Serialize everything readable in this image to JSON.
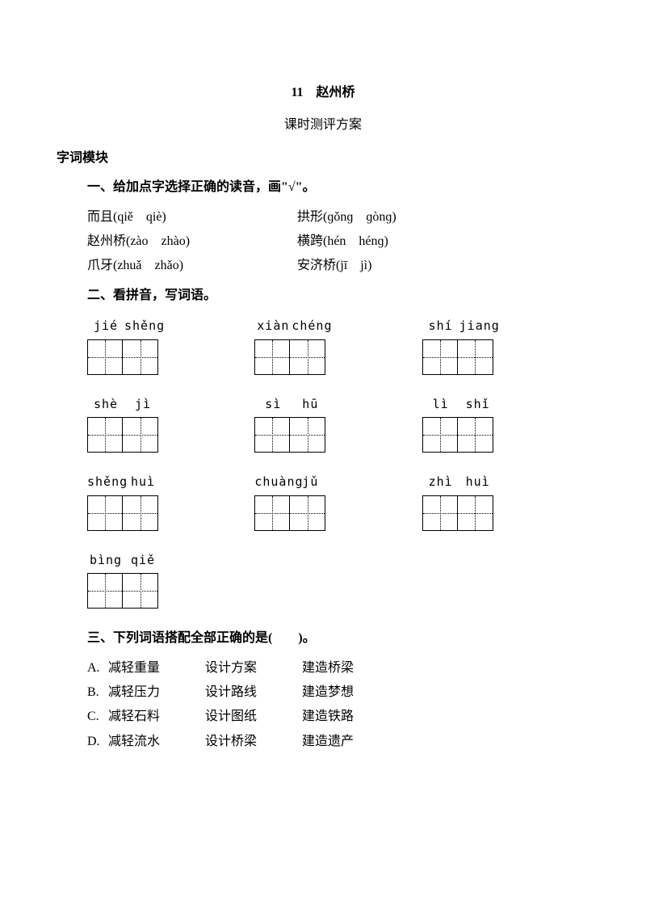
{
  "title": "11　赵州桥",
  "subtitle": "课时测评方案",
  "section_header": "字词模块",
  "q1": {
    "heading": "一、给加点字选择正确的读音，画\"√\"。",
    "rows": [
      {
        "left": "而且(qiě　qiè)",
        "right": "拱形(ɡǒnɡ　ɡònɡ)"
      },
      {
        "left": "赵州桥(zào　zhào)",
        "right": "横跨(hén　hénɡ)"
      },
      {
        "left": "爪牙(zhuǎ　zhǎo)",
        "right": "安济桥(jī　jì)"
      }
    ]
  },
  "q2": {
    "heading": "二、看拼音，写词语。",
    "rows": [
      [
        {
          "p1": "jié",
          "p2": "shěng"
        },
        {
          "p1": "xiàn",
          "p2": "chéng"
        },
        {
          "p1": "shí",
          "p2": "jiang"
        }
      ],
      [
        {
          "p1": "shè",
          "p2": "jì"
        },
        {
          "p1": "sì",
          "p2": "hū"
        },
        {
          "p1": "lì",
          "p2": "shǐ"
        }
      ],
      [
        {
          "p1": "shěng",
          "p2": "huì"
        },
        {
          "p1": "chuàng",
          "p2": "jǔ"
        },
        {
          "p1": "zhì",
          "p2": "huì"
        }
      ],
      [
        {
          "p1": "bìng",
          "p2": "qiě"
        }
      ]
    ]
  },
  "q3": {
    "heading": "三、下列词语搭配全部正确的是(　　)。",
    "options": [
      {
        "label": "A.",
        "c1": "减轻重量",
        "c2": "设计方案",
        "c3": "建造桥梁"
      },
      {
        "label": "B.",
        "c1": "减轻压力",
        "c2": "设计路线",
        "c3": "建造梦想"
      },
      {
        "label": "C.",
        "c1": "减轻石料",
        "c2": "设计图纸",
        "c3": "建造铁路"
      },
      {
        "label": "D.",
        "c1": "减轻流水",
        "c2": "设计桥梁",
        "c3": "建造遗产"
      }
    ]
  }
}
